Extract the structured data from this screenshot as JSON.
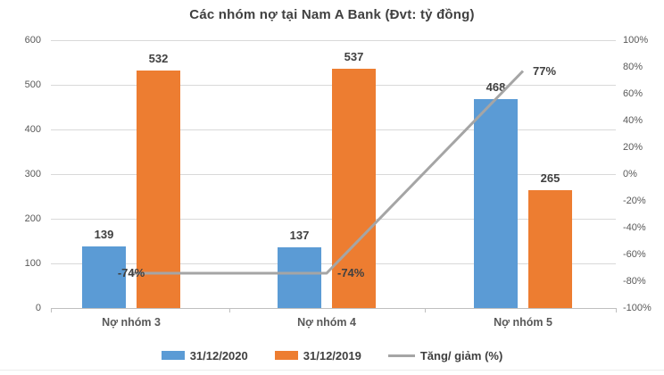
{
  "chart_data": {
    "type": "bar",
    "title": "Các nhóm nợ tại Nam A Bank (Đvt: tỷ đồng)",
    "categories": [
      "Nợ nhóm 3",
      "Nợ nhóm 4",
      "Nợ nhóm 5"
    ],
    "series": [
      {
        "name": "31/12/2020",
        "kind": "bar",
        "color": "#5B9BD5",
        "values": [
          139,
          137,
          468
        ],
        "value_labels": [
          "139",
          "137",
          "468"
        ]
      },
      {
        "name": "31/12/2019",
        "kind": "bar",
        "color": "#ED7D31",
        "values": [
          532,
          537,
          265
        ],
        "value_labels": [
          "532",
          "537",
          "265"
        ]
      },
      {
        "name": "Tăng/ giảm (%)",
        "kind": "line",
        "color": "#A5A5A5",
        "axis": "right",
        "values": [
          -74,
          -74,
          77
        ],
        "value_labels": [
          "-74%",
          "-74%",
          "77%"
        ]
      }
    ],
    "left_axis": {
      "min": 0,
      "max": 600,
      "tick_step": 100,
      "ticks": [
        "0",
        "100",
        "200",
        "300",
        "400",
        "500",
        "600"
      ]
    },
    "right_axis": {
      "min": -100,
      "max": 100,
      "tick_step": 20,
      "ticks": [
        "-100%",
        "-80%",
        "-60%",
        "-40%",
        "-20%",
        "0%",
        "20%",
        "40%",
        "60%",
        "80%",
        "100%"
      ]
    },
    "grid": true,
    "legend_position": "bottom",
    "colors": {
      "title_text": "#404040",
      "axis_text": "#595959",
      "gridline": "#D9D9D9",
      "data_label_text": "#404040"
    }
  }
}
